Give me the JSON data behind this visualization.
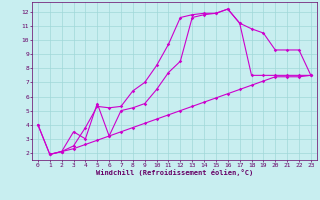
{
  "xlabel": "Windchill (Refroidissement éolien,°C)",
  "xlim": [
    -0.5,
    23.5
  ],
  "ylim": [
    1.5,
    12.7
  ],
  "xticks": [
    0,
    1,
    2,
    3,
    4,
    5,
    6,
    7,
    8,
    9,
    10,
    11,
    12,
    13,
    14,
    15,
    16,
    17,
    18,
    19,
    20,
    21,
    22,
    23
  ],
  "yticks": [
    2,
    3,
    4,
    5,
    6,
    7,
    8,
    9,
    10,
    11,
    12
  ],
  "bg_color": "#c8eef0",
  "line_color": "#cc00cc",
  "grid_color": "#a0d8d8",
  "line1_x": [
    0,
    1,
    2,
    3,
    4,
    5,
    6,
    7,
    8,
    9,
    10,
    11,
    12,
    13,
    14,
    15,
    16,
    17,
    18,
    19,
    20,
    21,
    22,
    23
  ],
  "line1_y": [
    4.0,
    1.9,
    2.1,
    2.5,
    3.8,
    5.3,
    5.2,
    5.3,
    6.4,
    7.0,
    8.2,
    9.7,
    11.6,
    11.8,
    11.9,
    11.9,
    12.2,
    11.2,
    10.8,
    10.5,
    9.3,
    9.3,
    9.3,
    7.5
  ],
  "line2_x": [
    0,
    1,
    2,
    3,
    4,
    5,
    6,
    7,
    8,
    9,
    10,
    11,
    12,
    13,
    14,
    15,
    16,
    17,
    18,
    19,
    20,
    21,
    22,
    23
  ],
  "line2_y": [
    4.0,
    1.9,
    2.1,
    3.5,
    3.0,
    5.5,
    3.2,
    5.0,
    5.2,
    5.5,
    6.5,
    7.7,
    8.5,
    11.6,
    11.8,
    11.9,
    12.2,
    11.2,
    7.5,
    7.5,
    7.5,
    7.5,
    7.5,
    7.5
  ],
  "line3_x": [
    1,
    2,
    3,
    4,
    5,
    6,
    7,
    8,
    9,
    10,
    11,
    12,
    13,
    14,
    15,
    16,
    17,
    18,
    19,
    20,
    21,
    22,
    23
  ],
  "line3_y": [
    1.9,
    2.1,
    2.3,
    2.6,
    2.9,
    3.2,
    3.5,
    3.8,
    4.1,
    4.4,
    4.7,
    5.0,
    5.3,
    5.6,
    5.9,
    6.2,
    6.5,
    6.8,
    7.1,
    7.4,
    7.4,
    7.4,
    7.5
  ]
}
